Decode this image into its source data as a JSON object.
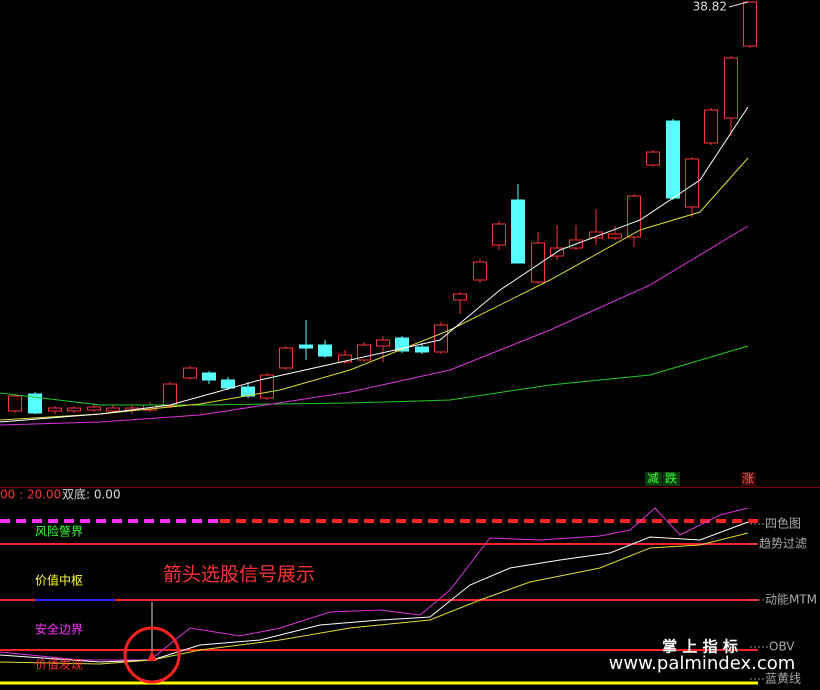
{
  "header": {
    "price_label": "38.82"
  },
  "signals": [
    "减",
    "跌",
    "涨"
  ],
  "indicator": {
    "left_value": "00 : 20.00",
    "double_bottom": "双底: 0.00"
  },
  "zones": [
    "风险警界",
    "价值中枢",
    "安全边界",
    "价值发现"
  ],
  "caption": "箭头选股信号展示",
  "right_labels": [
    "四色图",
    "趋势过滤",
    "动能MTM",
    "OBV",
    "蓝黄线"
  ],
  "watermark": {
    "brand": "掌 上 指 标",
    "url": "www.palmindex.com"
  }
}
